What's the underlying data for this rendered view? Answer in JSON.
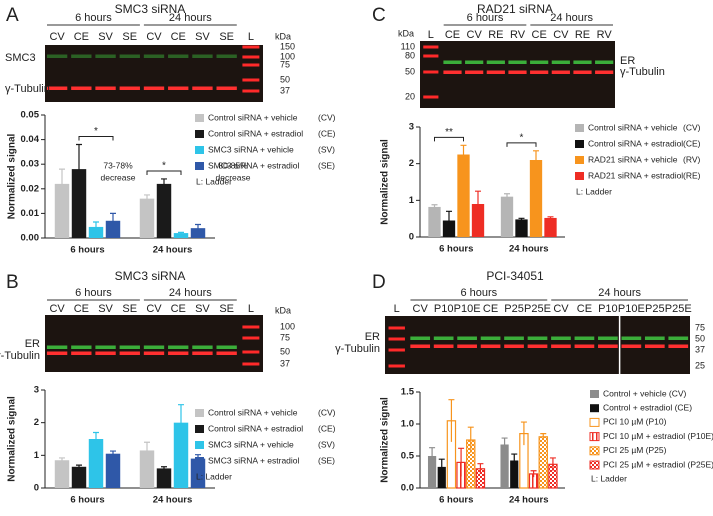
{
  "blots": [
    {
      "letter": "A",
      "title": "SMC3 siRNA",
      "groups": [
        "6 hours",
        "24 hours"
      ],
      "lanes": [
        "CV",
        "CE",
        "SV",
        "SE",
        "CV",
        "CE",
        "SV",
        "SE",
        "L"
      ],
      "unit": "kDa",
      "markers": [
        150,
        100,
        75,
        50,
        37
      ],
      "rows": [
        "SMC3",
        "γ-Tubulin"
      ]
    },
    {
      "letter": "B",
      "title": "SMC3 siRNA",
      "groups": [
        "6 hours",
        "24 hours"
      ],
      "lanes": [
        "CV",
        "CE",
        "SV",
        "SE",
        "CV",
        "CE",
        "SV",
        "SE",
        "L"
      ],
      "unit": "kDa",
      "markers": [
        100,
        75,
        50,
        37
      ],
      "rows": [
        "ER",
        "γ-Tubulin"
      ]
    },
    {
      "letter": "C",
      "title": "RAD21 siRNA",
      "groups": [
        "6 hours",
        "24 hours"
      ],
      "lanes": [
        "L",
        "CE",
        "CV",
        "RE",
        "RV",
        "CE",
        "CV",
        "RE",
        "RV"
      ],
      "unit": "kDa",
      "markers": [
        110,
        80,
        50,
        20
      ],
      "rows": [
        "ER",
        "γ-Tubulin"
      ]
    },
    {
      "letter": "D",
      "title": "PCI-34051",
      "groups": [
        "6 hours",
        "24 hours"
      ],
      "lanes": [
        "L",
        "CV",
        "P10",
        "P10E",
        "CE",
        "P25",
        "P25E",
        "CV",
        "CE",
        "P10",
        "P10E",
        "P25",
        "P25E"
      ],
      "markers": [
        75,
        50,
        37,
        25
      ],
      "rows": [
        "ER",
        "γ-Tubulin"
      ]
    }
  ],
  "chart_data": [
    {
      "type": "bar",
      "ylabel": "Normalized signal",
      "categories": [
        "6 hours",
        "24 hours"
      ],
      "ylim": [
        0,
        0.05
      ],
      "yticks": [
        {
          "value": 0,
          "label": "0.00"
        },
        {
          "value": 0.01,
          "label": "0.01"
        },
        {
          "value": 0.02,
          "label": "0.02"
        },
        {
          "value": 0.03,
          "label": "0.03"
        },
        {
          "value": 0.04,
          "label": "0.04"
        },
        {
          "value": 0.05,
          "label": "0.05"
        }
      ],
      "series": [
        {
          "name": "Control siRNA + vehicle",
          "abbr": "(CV)",
          "color": "#c4c4c4",
          "style": "solid",
          "values": [
            0.022,
            0.016
          ],
          "errors": [
            0.006,
            0.0015
          ]
        },
        {
          "name": "Control siRNA + estradiol",
          "abbr": "(CE)",
          "color": "#1a1a1a",
          "style": "solid",
          "values": [
            0.028,
            0.022
          ],
          "errors": [
            0.01,
            0.002
          ]
        },
        {
          "name": "SMC3 siRNA + vehicle",
          "abbr": "(SV)",
          "color": "#2ec4e8",
          "style": "solid",
          "values": [
            0.0045,
            0.002
          ],
          "errors": [
            0.002,
            0.0003
          ]
        },
        {
          "name": "SMC3 siRNA + estradiol",
          "abbr": "(SE)",
          "color": "#2f58a8",
          "style": "solid",
          "values": [
            0.007,
            0.004
          ],
          "errors": [
            0.003,
            0.0015
          ]
        }
      ],
      "legend_note": "L:  Ladder",
      "significance": [
        {
          "text": "*",
          "category": 0,
          "from": 1,
          "to": 3
        },
        {
          "text": "*",
          "category": 1,
          "from": 0,
          "to": 2
        }
      ],
      "annotations": [
        {
          "lines": [
            "73-78%",
            "decrease"
          ],
          "category": 0
        },
        {
          "lines": [
            "80-85%",
            "decrease"
          ],
          "category": 1
        }
      ]
    },
    {
      "type": "bar",
      "ylabel": "Normalized signal",
      "categories": [
        "6 hours",
        "24 hours"
      ],
      "ylim": [
        0,
        3
      ],
      "yticks": [
        0,
        1,
        2,
        3
      ],
      "series": [
        {
          "name": "Control siRNA + vehicle",
          "abbr": "(CV)",
          "color": "#c4c4c4",
          "style": "solid",
          "values": [
            0.85,
            1.15
          ],
          "errors": [
            0.07,
            0.25
          ]
        },
        {
          "name": "Control siRNA + estradiol",
          "abbr": "(CE)",
          "color": "#1a1a1a",
          "style": "solid",
          "values": [
            0.65,
            0.6
          ],
          "errors": [
            0.05,
            0.05
          ]
        },
        {
          "name": "SMC3 siRNA + vehicle",
          "abbr": "(SV)",
          "color": "#2ec4e8",
          "style": "solid",
          "values": [
            1.5,
            2.0
          ],
          "errors": [
            0.2,
            0.55
          ]
        },
        {
          "name": "SMC3 siRNA + estradiol",
          "abbr": "(SE)",
          "color": "#2f58a8",
          "style": "solid",
          "values": [
            1.05,
            0.9
          ],
          "errors": [
            0.08,
            0.12
          ]
        }
      ],
      "legend_note": "L:  Ladder"
    },
    {
      "type": "bar",
      "ylabel": "Normalized signal",
      "categories": [
        "6 hours",
        "24 hours"
      ],
      "ylim": [
        0,
        3
      ],
      "yticks": [
        0,
        1,
        2,
        3
      ],
      "series": [
        {
          "name": "Control siRNA + vehicle",
          "abbr": "(CV)",
          "color": "#b5b5b5",
          "style": "solid",
          "values": [
            0.82,
            1.1
          ],
          "errors": [
            0.06,
            0.08
          ]
        },
        {
          "name": "Control siRNA + estradiol",
          "abbr": "(CE)",
          "color": "#111111",
          "style": "solid",
          "values": [
            0.45,
            0.48
          ],
          "errors": [
            0.25,
            0.03
          ]
        },
        {
          "name": "RAD21 siRNA + vehicle",
          "abbr": "(RV)",
          "color": "#f7941d",
          "style": "solid",
          "values": [
            2.25,
            2.1
          ],
          "errors": [
            0.25,
            0.25
          ]
        },
        {
          "name": "RAD21 siRNA + estradiol",
          "abbr": "(RE)",
          "color": "#ee2d24",
          "style": "solid",
          "values": [
            0.9,
            0.52
          ],
          "errors": [
            0.35,
            0.03
          ]
        }
      ],
      "legend_note": "L:  Ladder",
      "significance": [
        {
          "text": "**",
          "category": 0,
          "from": 0,
          "to": 2
        },
        {
          "text": "*",
          "category": 1,
          "from": 0,
          "to": 2
        }
      ]
    },
    {
      "type": "bar",
      "ylabel": "Normalized signal",
      "categories": [
        "6 hours",
        "24 hours"
      ],
      "ylim": [
        0,
        1.5
      ],
      "yticks": [
        {
          "value": 0,
          "label": "0.0"
        },
        {
          "value": 0.5,
          "label": "0.5"
        },
        {
          "value": 1,
          "label": "1.0"
        },
        {
          "value": 1.5,
          "label": "1.5"
        }
      ],
      "series": [
        {
          "name": "Control + vehicle (CV)",
          "color": "#8c8c8c",
          "style": "solid",
          "values": [
            0.5,
            0.68
          ],
          "errors": [
            0.13,
            0.1
          ]
        },
        {
          "name": "Control + estradiol (CE)",
          "color": "#111111",
          "style": "solid",
          "values": [
            0.33,
            0.43
          ],
          "errors": [
            0.12,
            0.1
          ]
        },
        {
          "name": "PCI 10 µM (P10)",
          "color": "#f7941d",
          "style": "outline",
          "values": [
            1.05,
            0.85
          ],
          "errors": [
            0.33,
            0.18
          ]
        },
        {
          "name": "PCI 10 µM + estradiol (P10E)",
          "color": "#ee2d24",
          "style": "hatch",
          "values": [
            0.4,
            0.22
          ],
          "errors": [
            0.22,
            0.05
          ]
        },
        {
          "name": "PCI 25 µM (P25)",
          "color": "#f7941d",
          "style": "check",
          "values": [
            0.75,
            0.8
          ],
          "errors": [
            0.2,
            0.05
          ]
        },
        {
          "name": "PCI 25 µM + estradiol (P25E)",
          "color": "#ee2d24",
          "style": "check",
          "values": [
            0.3,
            0.37
          ],
          "errors": [
            0.08,
            0.1
          ]
        }
      ],
      "legend_note": "L:  Ladder"
    }
  ]
}
